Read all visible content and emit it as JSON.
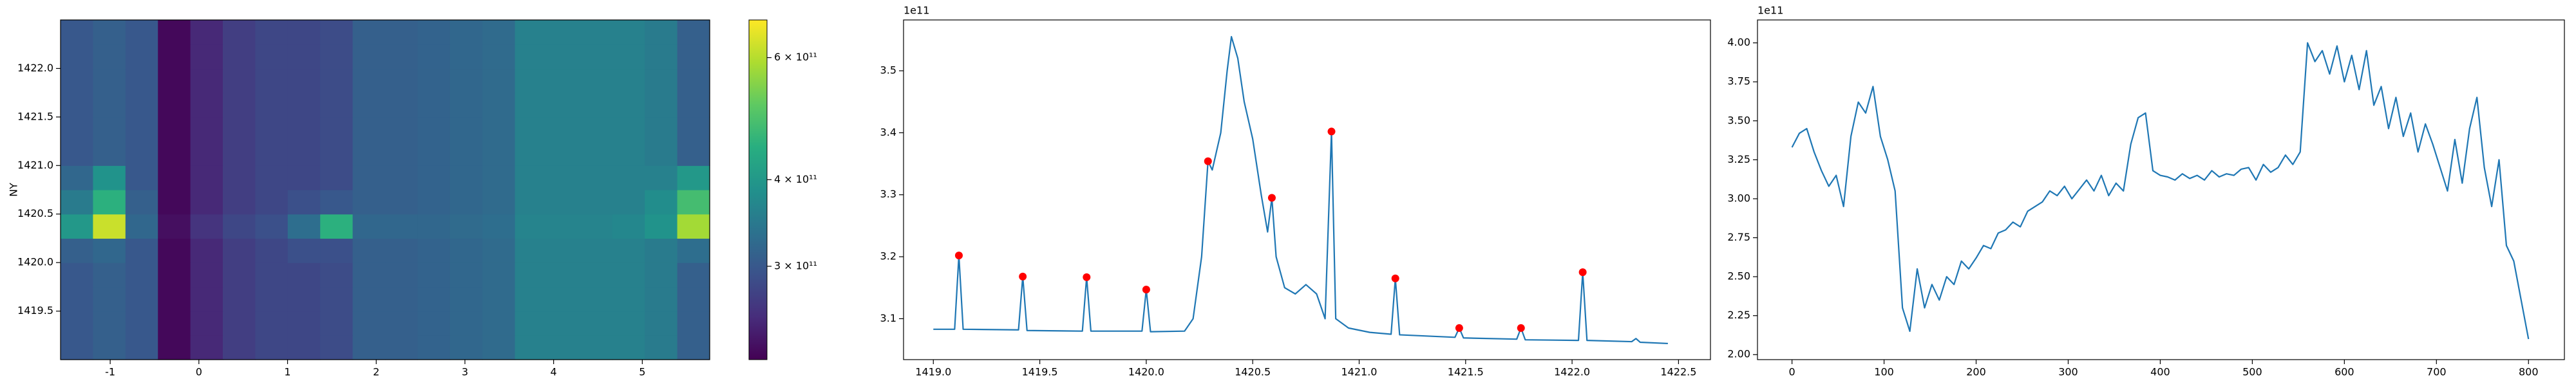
{
  "chart_data": [
    {
      "type": "heatmap",
      "ylabel": "NY",
      "colormap": "viridis",
      "log_color": true,
      "xlim": [
        -1.56,
        5.76
      ],
      "ylim": [
        1419.0,
        1422.5
      ],
      "xticks": [
        -1,
        0,
        1,
        2,
        3,
        4,
        5
      ],
      "yticks": [
        1419.5,
        {
          "value": 1420,
          "label": "1420.0"
        },
        1420.5,
        {
          "value": 1421,
          "label": "1421.0"
        },
        1421.5,
        {
          "value": 1422,
          "label": "1422.0"
        }
      ],
      "xedges": [
        -1.56,
        -1.194,
        -0.828,
        -0.462,
        -0.096,
        0.27,
        0.636,
        1.002,
        1.368,
        1.734,
        2.1,
        2.466,
        2.832,
        3.198,
        3.564,
        3.93,
        4.296,
        4.662,
        5.028,
        5.394,
        5.76
      ],
      "yedges": [
        1419.0,
        1419.25,
        1419.5,
        1419.75,
        1420.0,
        1420.25,
        1420.5,
        1420.75,
        1421.0,
        1421.25,
        1421.5,
        1421.75,
        1422.0,
        1422.25,
        1422.5
      ],
      "z": [
        [
          300000000000.0,
          310000000000.0,
          300000000000.0,
          225000000000.0,
          250000000000.0,
          270000000000.0,
          280000000000.0,
          280000000000.0,
          285000000000.0,
          310000000000.0,
          310000000000.0,
          315000000000.0,
          320000000000.0,
          325000000000.0,
          360000000000.0,
          360000000000.0,
          360000000000.0,
          360000000000.0,
          350000000000.0,
          310000000000.0
        ],
        [
          300000000000.0,
          310000000000.0,
          300000000000.0,
          225000000000.0,
          250000000000.0,
          270000000000.0,
          280000000000.0,
          280000000000.0,
          285000000000.0,
          310000000000.0,
          310000000000.0,
          315000000000.0,
          320000000000.0,
          325000000000.0,
          360000000000.0,
          360000000000.0,
          360000000000.0,
          360000000000.0,
          350000000000.0,
          310000000000.0
        ],
        [
          300000000000.0,
          310000000000.0,
          300000000000.0,
          225000000000.0,
          250000000000.0,
          270000000000.0,
          280000000000.0,
          280000000000.0,
          285000000000.0,
          310000000000.0,
          310000000000.0,
          315000000000.0,
          320000000000.0,
          325000000000.0,
          360000000000.0,
          360000000000.0,
          360000000000.0,
          360000000000.0,
          350000000000.0,
          310000000000.0
        ],
        [
          300000000000.0,
          310000000000.0,
          300000000000.0,
          225000000000.0,
          250000000000.0,
          270000000000.0,
          280000000000.0,
          280000000000.0,
          285000000000.0,
          310000000000.0,
          310000000000.0,
          315000000000.0,
          320000000000.0,
          325000000000.0,
          360000000000.0,
          360000000000.0,
          360000000000.0,
          360000000000.0,
          350000000000.0,
          310000000000.0
        ],
        [
          310000000000.0,
          320000000000.0,
          300000000000.0,
          225000000000.0,
          250000000000.0,
          270000000000.0,
          280000000000.0,
          290000000000.0,
          290000000000.0,
          310000000000.0,
          310000000000.0,
          315000000000.0,
          320000000000.0,
          325000000000.0,
          360000000000.0,
          360000000000.0,
          360000000000.0,
          360000000000.0,
          350000000000.0,
          330000000000.0
        ],
        [
          400000000000.0,
          620000000000.0,
          320000000000.0,
          230000000000.0,
          260000000000.0,
          280000000000.0,
          290000000000.0,
          330000000000.0,
          450000000000.0,
          320000000000.0,
          320000000000.0,
          320000000000.0,
          325000000000.0,
          330000000000.0,
          365000000000.0,
          365000000000.0,
          365000000000.0,
          370000000000.0,
          390000000000.0,
          580000000000.0
        ],
        [
          350000000000.0,
          450000000000.0,
          310000000000.0,
          225000000000.0,
          250000000000.0,
          270000000000.0,
          280000000000.0,
          290000000000.0,
          300000000000.0,
          310000000000.0,
          310000000000.0,
          315000000000.0,
          320000000000.0,
          325000000000.0,
          360000000000.0,
          360000000000.0,
          360000000000.0,
          360000000000.0,
          380000000000.0,
          480000000000.0
        ],
        [
          320000000000.0,
          390000000000.0,
          300000000000.0,
          225000000000.0,
          250000000000.0,
          270000000000.0,
          280000000000.0,
          280000000000.0,
          285000000000.0,
          310000000000.0,
          310000000000.0,
          315000000000.0,
          320000000000.0,
          325000000000.0,
          360000000000.0,
          360000000000.0,
          360000000000.0,
          360000000000.0,
          360000000000.0,
          400000000000.0
        ],
        [
          300000000000.0,
          310000000000.0,
          300000000000.0,
          225000000000.0,
          250000000000.0,
          270000000000.0,
          280000000000.0,
          280000000000.0,
          285000000000.0,
          310000000000.0,
          310000000000.0,
          315000000000.0,
          320000000000.0,
          325000000000.0,
          360000000000.0,
          360000000000.0,
          360000000000.0,
          360000000000.0,
          350000000000.0,
          310000000000.0
        ],
        [
          300000000000.0,
          310000000000.0,
          300000000000.0,
          225000000000.0,
          250000000000.0,
          270000000000.0,
          280000000000.0,
          280000000000.0,
          285000000000.0,
          310000000000.0,
          310000000000.0,
          315000000000.0,
          320000000000.0,
          325000000000.0,
          360000000000.0,
          360000000000.0,
          360000000000.0,
          360000000000.0,
          350000000000.0,
          310000000000.0
        ],
        [
          300000000000.0,
          310000000000.0,
          300000000000.0,
          225000000000.0,
          250000000000.0,
          270000000000.0,
          280000000000.0,
          280000000000.0,
          285000000000.0,
          310000000000.0,
          310000000000.0,
          315000000000.0,
          320000000000.0,
          325000000000.0,
          360000000000.0,
          360000000000.0,
          360000000000.0,
          360000000000.0,
          350000000000.0,
          310000000000.0
        ],
        [
          300000000000.0,
          310000000000.0,
          300000000000.0,
          225000000000.0,
          250000000000.0,
          270000000000.0,
          280000000000.0,
          280000000000.0,
          285000000000.0,
          310000000000.0,
          310000000000.0,
          315000000000.0,
          320000000000.0,
          325000000000.0,
          360000000000.0,
          360000000000.0,
          360000000000.0,
          360000000000.0,
          350000000000.0,
          310000000000.0
        ],
        [
          300000000000.0,
          310000000000.0,
          300000000000.0,
          225000000000.0,
          250000000000.0,
          270000000000.0,
          280000000000.0,
          280000000000.0,
          285000000000.0,
          310000000000.0,
          310000000000.0,
          315000000000.0,
          320000000000.0,
          325000000000.0,
          360000000000.0,
          360000000000.0,
          360000000000.0,
          360000000000.0,
          350000000000.0,
          310000000000.0
        ],
        [
          300000000000.0,
          310000000000.0,
          300000000000.0,
          225000000000.0,
          250000000000.0,
          270000000000.0,
          280000000000.0,
          280000000000.0,
          285000000000.0,
          310000000000.0,
          310000000000.0,
          315000000000.0,
          320000000000.0,
          325000000000.0,
          360000000000.0,
          360000000000.0,
          360000000000.0,
          360000000000.0,
          350000000000.0,
          310000000000.0
        ]
      ],
      "clim": [
        220000000000.0,
        680000000000.0
      ],
      "cticks": [
        {
          "value": 300000000000.0,
          "label": "3 × 10¹¹"
        },
        {
          "value": 400000000000.0,
          "label": "4 × 10¹¹"
        },
        {
          "value": 600000000000.0,
          "label": "6 × 10¹¹"
        }
      ]
    },
    {
      "type": "line",
      "y_offset_label": "1e11",
      "xlim": [
        1418.86,
        1422.65
      ],
      "ylim": [
        303400000000.0,
        358200000000.0
      ],
      "xticks": [
        {
          "value": 1419,
          "label": "1419.0"
        },
        1419.5,
        {
          "value": 1420,
          "label": "1420.0"
        },
        1420.5,
        {
          "value": 1421,
          "label": "1421.0"
        },
        1421.5,
        {
          "value": 1422,
          "label": "1422.0"
        },
        1422.5
      ],
      "yticks": [
        {
          "value": 310000000000.0,
          "label": "3.1"
        },
        {
          "value": 320000000000.0,
          "label": "3.2"
        },
        {
          "value": 330000000000.0,
          "label": "3.3"
        },
        {
          "value": 340000000000.0,
          "label": "3.4"
        },
        {
          "value": 350000000000.0,
          "label": "3.5"
        }
      ],
      "series": [
        {
          "color": "#1f77b4",
          "x": [
            1419.0,
            1419.1,
            1419.12,
            1419.14,
            1419.4,
            1419.42,
            1419.44,
            1419.7,
            1419.72,
            1419.74,
            1419.98,
            1420.0,
            1420.02,
            1420.18,
            1420.22,
            1420.26,
            1420.29,
            1420.31,
            1420.35,
            1420.38,
            1420.4,
            1420.43,
            1420.46,
            1420.5,
            1420.54,
            1420.57,
            1420.59,
            1420.61,
            1420.65,
            1420.7,
            1420.75,
            1420.8,
            1420.84,
            1420.87,
            1420.89,
            1420.95,
            1421.05,
            1421.15,
            1421.17,
            1421.19,
            1421.45,
            1421.47,
            1421.49,
            1421.74,
            1421.76,
            1421.78,
            1422.03,
            1422.05,
            1422.07,
            1422.28,
            1422.3,
            1422.32,
            1422.45
          ],
          "values": [
            308300000000.0,
            308300000000.0,
            320200000000.0,
            308300000000.0,
            308200000000.0,
            316800000000.0,
            308100000000.0,
            308000000000.0,
            316700000000.0,
            308000000000.0,
            308000000000.0,
            314700000000.0,
            307900000000.0,
            308000000000.0,
            310000000000.0,
            320000000000.0,
            335400000000.0,
            334000000000.0,
            340000000000.0,
            350000000000.0,
            355500000000.0,
            352000000000.0,
            345000000000.0,
            339000000000.0,
            330000000000.0,
            324000000000.0,
            329500000000.0,
            320000000000.0,
            315000000000.0,
            314000000000.0,
            315500000000.0,
            314000000000.0,
            310000000000.0,
            340200000000.0,
            310000000000.0,
            308500000000.0,
            307800000000.0,
            307500000000.0,
            316500000000.0,
            307400000000.0,
            307000000000.0,
            308500000000.0,
            306900000000.0,
            306700000000.0,
            308500000000.0,
            306600000000.0,
            306500000000.0,
            317500000000.0,
            306500000000.0,
            306300000000.0,
            306800000000.0,
            306200000000.0,
            306000000000.0
          ]
        },
        {
          "color": "#ff0000",
          "marker": "o",
          "x": [
            1419.12,
            1419.42,
            1419.72,
            1420.0,
            1420.29,
            1420.59,
            1420.87,
            1421.17,
            1421.47,
            1421.76,
            1422.05
          ],
          "values": [
            320200000000.0,
            316800000000.0,
            316700000000.0,
            314700000000.0,
            335400000000.0,
            329500000000.0,
            340200000000.0,
            316500000000.0,
            308500000000.0,
            308500000000.0,
            317500000000.0
          ]
        }
      ]
    },
    {
      "type": "line",
      "y_offset_label": "1e11",
      "xlim": [
        -37.5,
        839
      ],
      "ylim": [
        196800000000.0,
        414700000000.0
      ],
      "xticks": [
        0,
        100,
        200,
        300,
        400,
        500,
        600,
        700,
        800
      ],
      "yticks": [
        {
          "value": 200000000000.0,
          "label": "2.00"
        },
        {
          "value": 225000000000.0,
          "label": "2.25"
        },
        {
          "value": 250000000000.0,
          "label": "2.50"
        },
        {
          "value": 275000000000.0,
          "label": "2.75"
        },
        {
          "value": 300000000000.0,
          "label": "3.00"
        },
        {
          "value": 325000000000.0,
          "label": "3.25"
        },
        {
          "value": 350000000000.0,
          "label": "3.50"
        },
        {
          "value": 375000000000.0,
          "label": "3.75"
        },
        {
          "value": 400000000000.0,
          "label": "4.00"
        }
      ],
      "series": [
        {
          "color": "#1f77b4",
          "x": [
            0,
            8,
            16,
            24,
            32,
            40,
            48,
            56,
            64,
            72,
            80,
            88,
            96,
            104,
            112,
            120,
            128,
            136,
            144,
            152,
            160,
            168,
            176,
            184,
            192,
            200,
            208,
            216,
            224,
            232,
            240,
            248,
            256,
            264,
            272,
            280,
            288,
            296,
            304,
            312,
            320,
            328,
            336,
            344,
            352,
            360,
            368,
            376,
            384,
            392,
            400,
            408,
            416,
            424,
            432,
            440,
            448,
            456,
            464,
            472,
            480,
            488,
            496,
            504,
            512,
            520,
            528,
            536,
            544,
            552,
            560,
            568,
            576,
            584,
            592,
            600,
            608,
            616,
            624,
            632,
            640,
            648,
            656,
            664,
            672,
            680,
            688,
            696,
            704,
            712,
            720,
            728,
            736,
            744,
            752,
            760,
            768,
            776,
            784,
            792,
            800
          ],
          "values": [
            333000000000.0,
            342000000000.0,
            345000000000.0,
            330000000000.0,
            318000000000.0,
            308000000000.0,
            315000000000.0,
            295000000000.0,
            340000000000.0,
            362000000000.0,
            355000000000.0,
            372000000000.0,
            340000000000.0,
            325000000000.0,
            305000000000.0,
            230000000000.0,
            215000000000.0,
            255000000000.0,
            230000000000.0,
            245000000000.0,
            235000000000.0,
            250000000000.0,
            245000000000.0,
            260000000000.0,
            255000000000.0,
            262000000000.0,
            270000000000.0,
            268000000000.0,
            278000000000.0,
            280000000000.0,
            285000000000.0,
            282000000000.0,
            292000000000.0,
            295000000000.0,
            298000000000.0,
            305000000000.0,
            302000000000.0,
            308000000000.0,
            300000000000.0,
            306000000000.0,
            312000000000.0,
            305000000000.0,
            315000000000.0,
            302000000000.0,
            310000000000.0,
            305000000000.0,
            335000000000.0,
            352000000000.0,
            355000000000.0,
            318000000000.0,
            315000000000.0,
            314000000000.0,
            312000000000.0,
            316000000000.0,
            313000000000.0,
            315000000000.0,
            312000000000.0,
            318000000000.0,
            314000000000.0,
            316000000000.0,
            315000000000.0,
            319000000000.0,
            320000000000.0,
            312000000000.0,
            322000000000.0,
            317000000000.0,
            320000000000.0,
            328000000000.0,
            322000000000.0,
            330000000000.0,
            400000000000.0,
            388000000000.0,
            395000000000.0,
            380000000000.0,
            398000000000.0,
            375000000000.0,
            392000000000.0,
            370000000000.0,
            395000000000.0,
            360000000000.0,
            372000000000.0,
            345000000000.0,
            365000000000.0,
            340000000000.0,
            355000000000.0,
            330000000000.0,
            348000000000.0,
            335000000000.0,
            320000000000.0,
            305000000000.0,
            338000000000.0,
            310000000000.0,
            345000000000.0,
            365000000000.0,
            320000000000.0,
            295000000000.0,
            325000000000.0,
            270000000000.0,
            260000000000.0,
            235000000000.0,
            210000000000.0
          ]
        }
      ]
    }
  ]
}
